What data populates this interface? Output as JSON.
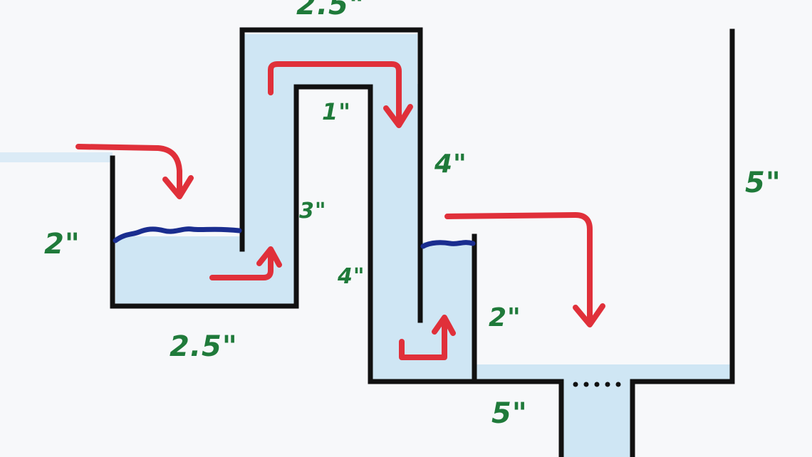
{
  "colors": {
    "paper": "#f7f8fa",
    "outline": "#111111",
    "water": "#cfe6f4",
    "water_surface": "#1a2d8f",
    "flow_arrow": "#e0303a",
    "label": "#1f7a3a"
  },
  "dimension_labels": {
    "top_width": "2.5\"",
    "inner_gap": "1\"",
    "left_height": "2\"",
    "left_bottom_width": "2.5\"",
    "left_riser_height": "3\"",
    "middle_drop_height": "4\"",
    "middle_riser_height": "4\"",
    "small_chamber_height": "2\"",
    "bottom_width": "5\"",
    "right_wall_height": "5\""
  },
  "diagram": {
    "flow_arrows": 5,
    "water_surfaces": 2,
    "drain_dots": "..."
  }
}
